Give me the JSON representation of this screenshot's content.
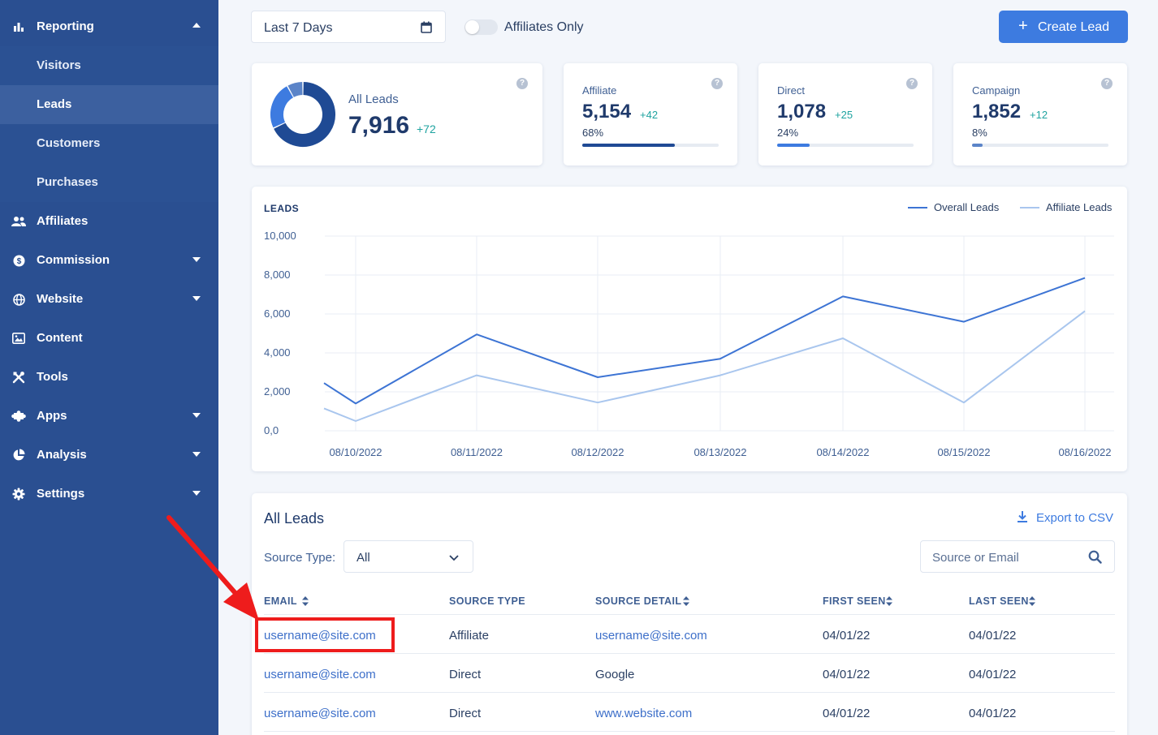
{
  "sidebar": {
    "items": [
      {
        "label": "Reporting",
        "icon": "bar-chart-icon"
      },
      {
        "label": "Affiliates",
        "icon": "users-icon"
      },
      {
        "label": "Commission",
        "icon": "dollar-circle-icon"
      },
      {
        "label": "Website",
        "icon": "globe-icon"
      },
      {
        "label": "Content",
        "icon": "image-icon"
      },
      {
        "label": "Tools",
        "icon": "tools-icon"
      },
      {
        "label": "Apps",
        "icon": "puzzle-icon"
      },
      {
        "label": "Analysis",
        "icon": "pie-chart-icon"
      },
      {
        "label": "Settings",
        "icon": "gear-icon"
      }
    ],
    "reporting_sub": [
      {
        "label": "Visitors"
      },
      {
        "label": "Leads"
      },
      {
        "label": "Customers"
      },
      {
        "label": "Purchases"
      }
    ]
  },
  "topbar": {
    "date_range": "Last 7 Days",
    "toggle_label": "Affiliates Only",
    "create_label": "Create Lead"
  },
  "stats": {
    "all": {
      "label": "All Leads",
      "value": "7,916",
      "delta": "+72",
      "donut": [
        0.68,
        0.24,
        0.08
      ]
    },
    "cards": [
      {
        "label": "Affiliate",
        "value": "5,154",
        "delta": "+42",
        "pct": "68%",
        "fill": 0.68,
        "color": "#1f4a94"
      },
      {
        "label": "Direct",
        "value": "1,078",
        "delta": "+25",
        "pct": "24%",
        "fill": 0.24,
        "color": "#3d7be0"
      },
      {
        "label": "Campaign",
        "value": "1,852",
        "delta": "+12",
        "pct": "8%",
        "fill": 0.08,
        "color": "#5b84c8"
      }
    ]
  },
  "chart_data": {
    "type": "line",
    "title": "LEADS",
    "x": [
      "08/10/2022",
      "08/11/2022",
      "08/12/2022",
      "08/13/2022",
      "08/14/2022",
      "08/15/2022",
      "08/16/2022"
    ],
    "ytick_labels": [
      "10,000",
      "8,000",
      "6,000",
      "4,000",
      "2,000",
      "0,0"
    ],
    "ylim": [
      0,
      10000
    ],
    "grid": true,
    "legend_position": "top-right",
    "series": [
      {
        "name": "Overall Leads",
        "color": "#3d74d4",
        "x": [
          "08/10/2022 (start)",
          "08/10/2022",
          "08/11/2022",
          "08/12/2022",
          "08/13/2022",
          "08/14/2022",
          "08/15/2022",
          "08/16/2022"
        ],
        "values": [
          2450,
          1400,
          4950,
          2750,
          3700,
          6900,
          5600,
          7850
        ]
      },
      {
        "name": "Affiliate Leads",
        "color": "#a9c6ee",
        "x": [
          "08/10/2022 (start)",
          "08/10/2022",
          "08/11/2022",
          "08/12/2022",
          "08/13/2022",
          "08/14/2022",
          "08/15/2022",
          "08/16/2022"
        ],
        "values": [
          1150,
          500,
          2850,
          1450,
          2850,
          4750,
          1450,
          6150
        ]
      }
    ]
  },
  "leads": {
    "title": "All Leads",
    "export_label": "Export to CSV",
    "source_type_label": "Source Type:",
    "source_type_value": "All",
    "search_placeholder": "Source or Email",
    "columns": [
      "EMAIL",
      "SOURCE TYPE",
      "SOURCE DETAIL",
      "FIRST SEEN",
      "LAST SEEN"
    ],
    "rows": [
      {
        "email": "username@site.com",
        "source_type": "Affiliate",
        "source_detail": "username@site.com",
        "first_seen": "04/01/22",
        "last_seen": "04/01/22"
      },
      {
        "email": "username@site.com",
        "source_type": "Direct",
        "source_detail": "Google",
        "first_seen": "04/01/22",
        "last_seen": "04/01/22"
      },
      {
        "email": "username@site.com",
        "source_type": "Direct",
        "source_detail": "www.website.com",
        "first_seen": "04/01/22",
        "last_seen": "04/01/22"
      }
    ]
  },
  "annotation": {
    "color": "#ee1c1c"
  }
}
